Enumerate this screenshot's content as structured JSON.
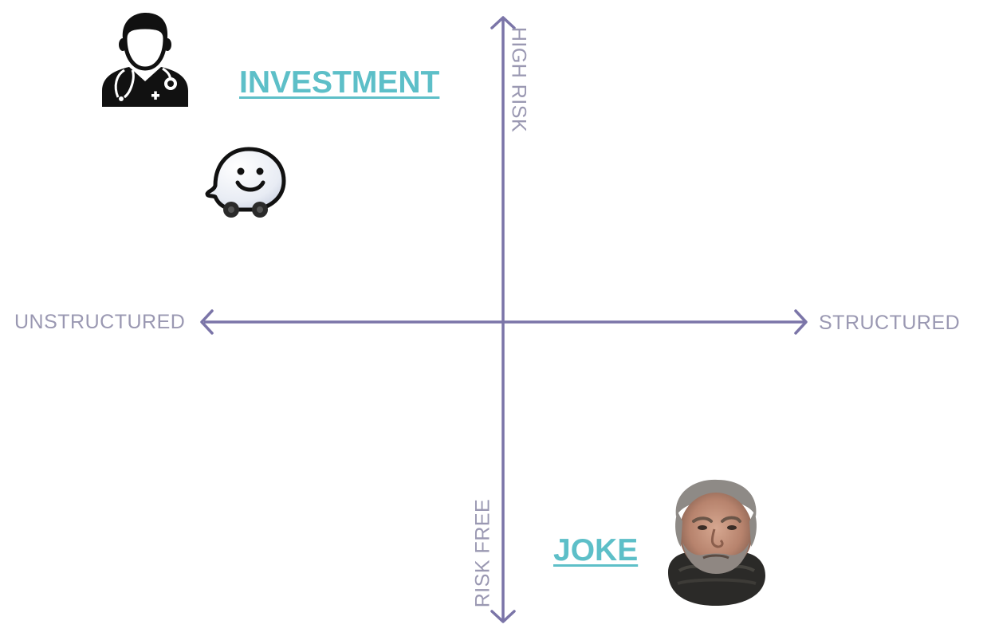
{
  "axes": {
    "left_label": "UNSTRUCTURED",
    "right_label": "STRUCTURED",
    "top_label": "HIGH RISK",
    "bottom_label": "RISK FREE",
    "color": "#7b75a8"
  },
  "links": {
    "investment": "INVESTMENT",
    "joke": "JOKE",
    "color": "#5dbfc8"
  },
  "icons": {
    "top_left": "doctor-icon",
    "middle_left": "waze-icon",
    "bottom_right": "bearded-man-portrait"
  }
}
